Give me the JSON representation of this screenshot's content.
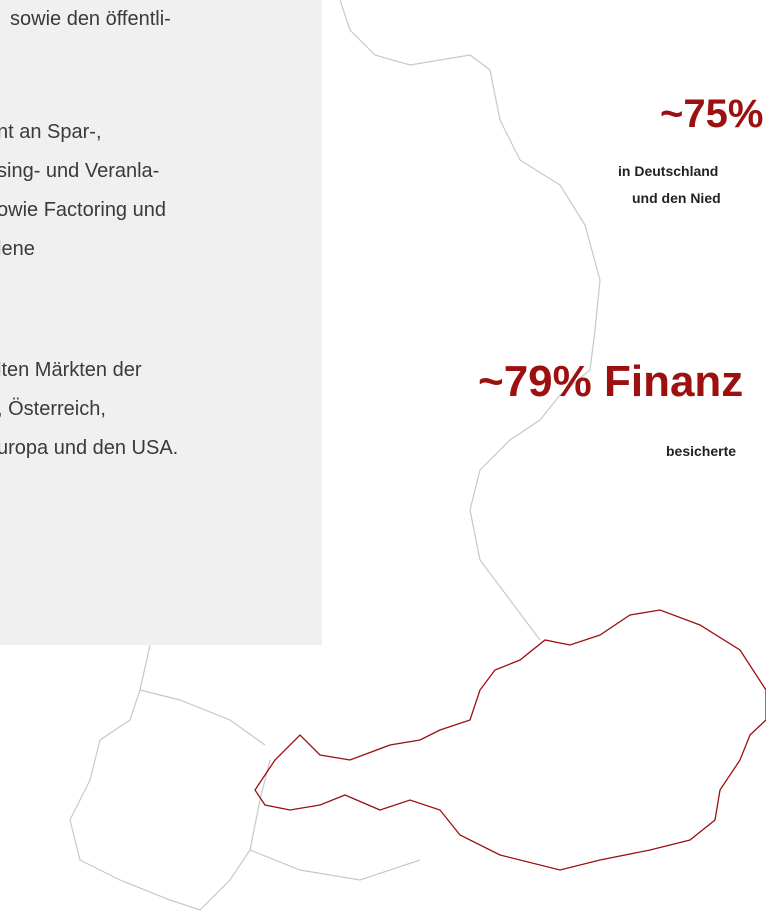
{
  "left_box": {
    "paragraphs": [
      [
        "sowie den öffentli-"
      ],
      [
        "nt an Spar-,",
        "sing- und Veranla-",
        "owie Factoring und",
        "lene"
      ],
      [
        "lten Märkten der",
        ", Österreich,",
        "uropa und den USA."
      ]
    ]
  },
  "stats": [
    {
      "headline": "~75%",
      "lines": [
        "in Deutschland",
        "und den Nied"
      ]
    },
    {
      "headline": "~79% Finanz",
      "lines": [
        "besicherte"
      ]
    }
  ]
}
